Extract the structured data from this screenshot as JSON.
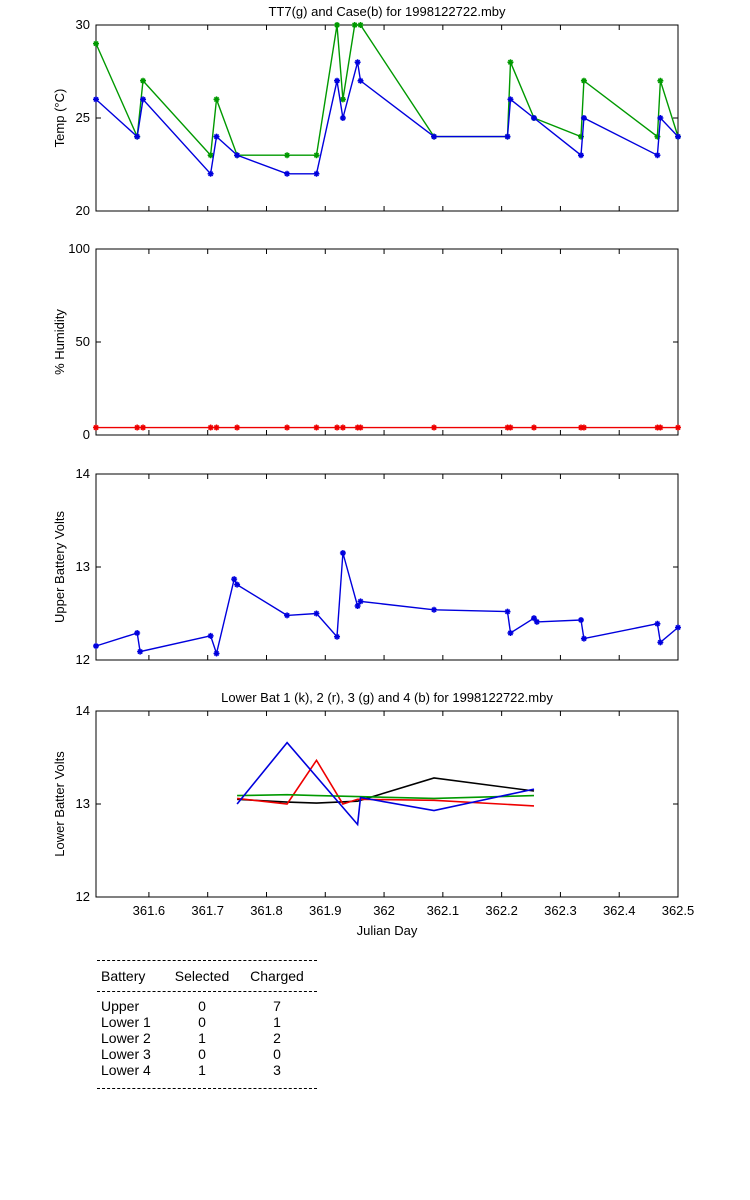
{
  "chart_data": [
    {
      "type": "line",
      "title": "TT7(g) and Case(b) for 1998122722.mby",
      "xlabel": "",
      "ylabel": "Temp (°C)",
      "xlim": [
        361.51,
        362.5
      ],
      "ylim": [
        20,
        30
      ],
      "yticks": [
        "20",
        "25",
        "30"
      ],
      "series": [
        {
          "color": "#009900",
          "marker": "*",
          "x": [
            361.51,
            361.58,
            361.59,
            361.705,
            361.715,
            361.75,
            361.835,
            361.885,
            361.92,
            361.93,
            361.95,
            361.96,
            362.085,
            362.21,
            362.215,
            362.255,
            362.335,
            362.34,
            362.465,
            362.47,
            362.5
          ],
          "y": [
            29,
            24,
            27,
            23,
            26,
            23,
            23,
            23,
            30,
            26,
            30,
            30,
            24,
            24,
            28,
            25,
            24,
            27,
            24,
            27,
            24
          ]
        },
        {
          "color": "#0000dd",
          "marker": "*",
          "x": [
            361.51,
            361.58,
            361.59,
            361.705,
            361.715,
            361.75,
            361.835,
            361.885,
            361.92,
            361.93,
            361.955,
            361.96,
            362.085,
            362.21,
            362.215,
            362.255,
            362.335,
            362.34,
            362.465,
            362.47,
            362.5
          ],
          "y": [
            26,
            24,
            26,
            22,
            24,
            23,
            22,
            22,
            27,
            25,
            28,
            27,
            24,
            24,
            26,
            25,
            23,
            25,
            23,
            25,
            24
          ]
        }
      ]
    },
    {
      "type": "line",
      "title": "",
      "xlabel": "",
      "ylabel": "% Humidity",
      "xlim": [
        361.51,
        362.5
      ],
      "ylim": [
        0,
        100
      ],
      "yticks": [
        "0",
        "50",
        "100"
      ],
      "series": [
        {
          "color": "#ee0000",
          "marker": "*",
          "x": [
            361.51,
            361.58,
            361.59,
            361.705,
            361.715,
            361.75,
            361.835,
            361.885,
            361.92,
            361.93,
            361.955,
            361.96,
            362.085,
            362.21,
            362.215,
            362.255,
            362.335,
            362.34,
            362.465,
            362.47,
            362.5
          ],
          "y": [
            4,
            4,
            4,
            4,
            4,
            4,
            4,
            4,
            4,
            4,
            4,
            4,
            4,
            4,
            4,
            4,
            4,
            4,
            4,
            4,
            4
          ]
        }
      ]
    },
    {
      "type": "line",
      "title": "",
      "xlabel": "",
      "ylabel": "Upper Battery Volts",
      "xlim": [
        361.51,
        362.5
      ],
      "ylim": [
        12,
        14
      ],
      "yticks": [
        "12",
        "13",
        "14"
      ],
      "series": [
        {
          "color": "#0000dd",
          "marker": "*",
          "x": [
            361.51,
            361.58,
            361.585,
            361.705,
            361.715,
            361.745,
            361.75,
            361.835,
            361.885,
            361.92,
            361.93,
            361.955,
            361.96,
            362.085,
            362.21,
            362.215,
            362.255,
            362.26,
            362.335,
            362.34,
            362.465,
            362.47,
            362.5
          ],
          "y": [
            12.15,
            12.29,
            12.09,
            12.26,
            12.07,
            12.87,
            12.81,
            12.48,
            12.5,
            12.25,
            13.15,
            12.58,
            12.63,
            12.54,
            12.52,
            12.29,
            12.45,
            12.41,
            12.43,
            12.23,
            12.39,
            12.19,
            12.35
          ]
        }
      ]
    },
    {
      "type": "line",
      "title": "Lower Bat 1 (k), 2 (r), 3 (g) and 4 (b) for 1998122722.mby",
      "xlabel": "Julian Day",
      "ylabel": "Lower Batter Volts",
      "xlim": [
        361.51,
        362.5
      ],
      "ylim": [
        12,
        14
      ],
      "yticks": [
        "12",
        "13",
        "14"
      ],
      "xticks": [
        361.6,
        361.7,
        361.8,
        361.9,
        362.0,
        362.1,
        362.2,
        362.3,
        362.4,
        362.5
      ],
      "xticklabels": [
        "361.6",
        "361.7",
        "361.8",
        "361.9",
        "362",
        "362.1",
        "362.2",
        "362.3",
        "362.4",
        "362.5"
      ],
      "series": [
        {
          "color": "#000000",
          "x": [
            361.75,
            361.835,
            361.885,
            361.955,
            362.085,
            362.255
          ],
          "y": [
            13.05,
            13.02,
            13.01,
            13.03,
            13.28,
            13.14
          ]
        },
        {
          "color": "#ee0000",
          "x": [
            361.75,
            361.835,
            361.885,
            361.93,
            361.955,
            362.085,
            362.255
          ],
          "y": [
            13.06,
            13.0,
            13.47,
            13.0,
            13.05,
            13.04,
            12.98
          ]
        },
        {
          "color": "#009900",
          "x": [
            361.75,
            361.835,
            361.885,
            361.955,
            362.085,
            362.255
          ],
          "y": [
            13.09,
            13.1,
            13.09,
            13.08,
            13.06,
            13.09
          ]
        },
        {
          "color": "#0000dd",
          "x": [
            361.75,
            361.835,
            361.955,
            361.96,
            362.085,
            362.255
          ],
          "y": [
            13.0,
            13.66,
            12.78,
            13.07,
            12.93,
            13.16
          ]
        }
      ]
    }
  ],
  "table": {
    "headers": [
      "Battery",
      "Selected",
      "Charged"
    ],
    "rows": [
      [
        "Upper",
        "0",
        "7"
      ],
      [
        "Lower 1",
        "0",
        "1"
      ],
      [
        "Lower 2",
        "1",
        "2"
      ],
      [
        "Lower 3",
        "0",
        "0"
      ],
      [
        "Lower 4",
        "1",
        "3"
      ]
    ]
  }
}
